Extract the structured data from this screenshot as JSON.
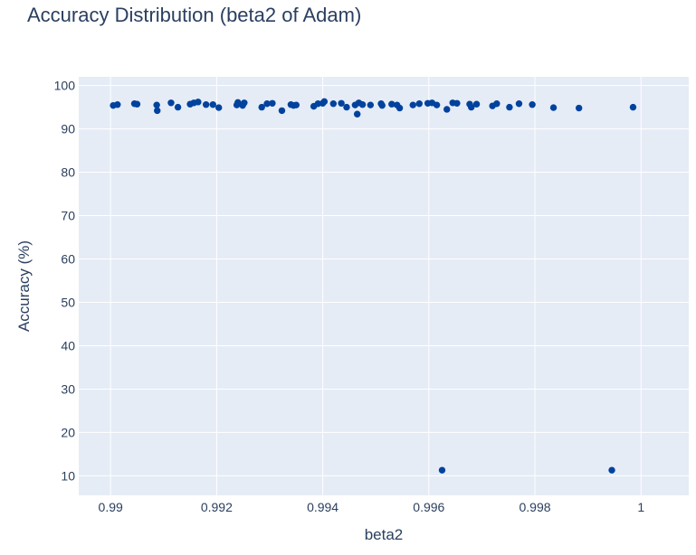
{
  "chart_data": {
    "type": "scatter",
    "title": "Accuracy Distribution (beta2 of Adam)",
    "xlabel": "beta2",
    "ylabel": "Accuracy (%)",
    "xlim": [
      0.9894,
      1.0009
    ],
    "ylim": [
      5.5,
      102
    ],
    "xticks": [
      0.99,
      0.992,
      0.994,
      0.996,
      0.998,
      1
    ],
    "xtick_labels": [
      "0.99",
      "0.992",
      "0.994",
      "0.996",
      "0.998",
      "1"
    ],
    "yticks": [
      10,
      20,
      30,
      40,
      50,
      60,
      70,
      80,
      90,
      100
    ],
    "ytick_labels": [
      "10",
      "20",
      "30",
      "40",
      "50",
      "60",
      "70",
      "80",
      "90",
      "100"
    ],
    "grid": true,
    "colors": {
      "marker": "#00429d",
      "plot_bg": "#e5ecf6",
      "grid": "#ffffff",
      "text": "#2a3f5f"
    },
    "series": [
      {
        "points": [
          [
            0.99005,
            95.4
          ],
          [
            0.99013,
            95.6
          ],
          [
            0.99045,
            95.8
          ],
          [
            0.9905,
            95.7
          ],
          [
            0.99087,
            95.5
          ],
          [
            0.99088,
            94.2
          ],
          [
            0.99114,
            96.0
          ],
          [
            0.99127,
            95.0
          ],
          [
            0.9915,
            95.7
          ],
          [
            0.99157,
            96.0
          ],
          [
            0.99165,
            96.2
          ],
          [
            0.9918,
            95.6
          ],
          [
            0.99193,
            95.6
          ],
          [
            0.99204,
            94.9
          ],
          [
            0.99238,
            95.5
          ],
          [
            0.9924,
            96.1
          ],
          [
            0.99249,
            95.4
          ],
          [
            0.99252,
            96.0
          ],
          [
            0.99285,
            95.0
          ],
          [
            0.99295,
            95.8
          ],
          [
            0.99305,
            95.9
          ],
          [
            0.99323,
            94.2
          ],
          [
            0.9934,
            95.6
          ],
          [
            0.99345,
            95.4
          ],
          [
            0.9935,
            95.5
          ],
          [
            0.99383,
            95.2
          ],
          [
            0.99391,
            95.8
          ],
          [
            0.994,
            95.9
          ],
          [
            0.99403,
            96.3
          ],
          [
            0.9942,
            95.8
          ],
          [
            0.99435,
            95.9
          ],
          [
            0.99445,
            95.0
          ],
          [
            0.99461,
            95.5
          ],
          [
            0.99465,
            93.4
          ],
          [
            0.99468,
            96.0
          ],
          [
            0.99475,
            95.6
          ],
          [
            0.9949,
            95.5
          ],
          [
            0.9951,
            95.8
          ],
          [
            0.99512,
            95.4
          ],
          [
            0.9953,
            95.7
          ],
          [
            0.9954,
            95.5
          ],
          [
            0.99545,
            94.8
          ],
          [
            0.9957,
            95.5
          ],
          [
            0.99582,
            95.8
          ],
          [
            0.99598,
            95.9
          ],
          [
            0.99606,
            96.0
          ],
          [
            0.99615,
            95.5
          ],
          [
            0.99625,
            11.3
          ],
          [
            0.99634,
            94.5
          ],
          [
            0.99645,
            96.0
          ],
          [
            0.99653,
            95.9
          ],
          [
            0.99677,
            95.7
          ],
          [
            0.9968,
            95.0
          ],
          [
            0.9969,
            95.7
          ],
          [
            0.9972,
            95.3
          ],
          [
            0.99728,
            95.8
          ],
          [
            0.99752,
            95.0
          ],
          [
            0.9977,
            95.8
          ],
          [
            0.99795,
            95.6
          ],
          [
            0.99835,
            94.9
          ],
          [
            0.99883,
            94.8
          ],
          [
            0.99945,
            11.3
          ],
          [
            0.99985,
            95.0
          ]
        ]
      }
    ]
  }
}
